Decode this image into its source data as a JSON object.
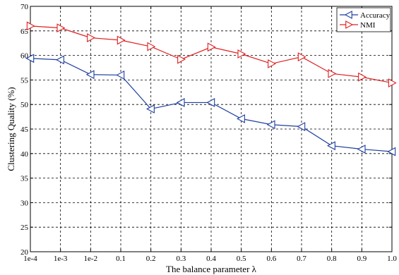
{
  "chart_data": {
    "type": "line",
    "title": "",
    "xlabel": "The balance parameter λ",
    "ylabel": "Clustering Quality (%)",
    "categories": [
      "1e-4",
      "1e-3",
      "1e-2",
      "0.1",
      "0.2",
      "0.3",
      "0.4",
      "0.5",
      "0.6",
      "0.7",
      "0.8",
      "0.9",
      "1.0"
    ],
    "ylim": [
      20,
      70
    ],
    "yticks": [
      20,
      25,
      30,
      35,
      40,
      45,
      50,
      55,
      60,
      65,
      70
    ],
    "grid": true,
    "legend_position": "top-right",
    "series": [
      {
        "name": "Accuracy",
        "color": "#1f3f9f",
        "marker": "triangle-left",
        "values": [
          59.4,
          59.1,
          56.1,
          56.0,
          49.1,
          50.4,
          50.4,
          47.1,
          45.9,
          45.5,
          41.6,
          40.9,
          40.4
        ]
      },
      {
        "name": "NMI",
        "color": "#e02020",
        "marker": "triangle-right",
        "values": [
          66.0,
          65.6,
          63.6,
          63.1,
          61.8,
          59.2,
          61.7,
          60.3,
          58.3,
          59.7,
          56.3,
          55.6,
          54.4
        ]
      }
    ]
  }
}
